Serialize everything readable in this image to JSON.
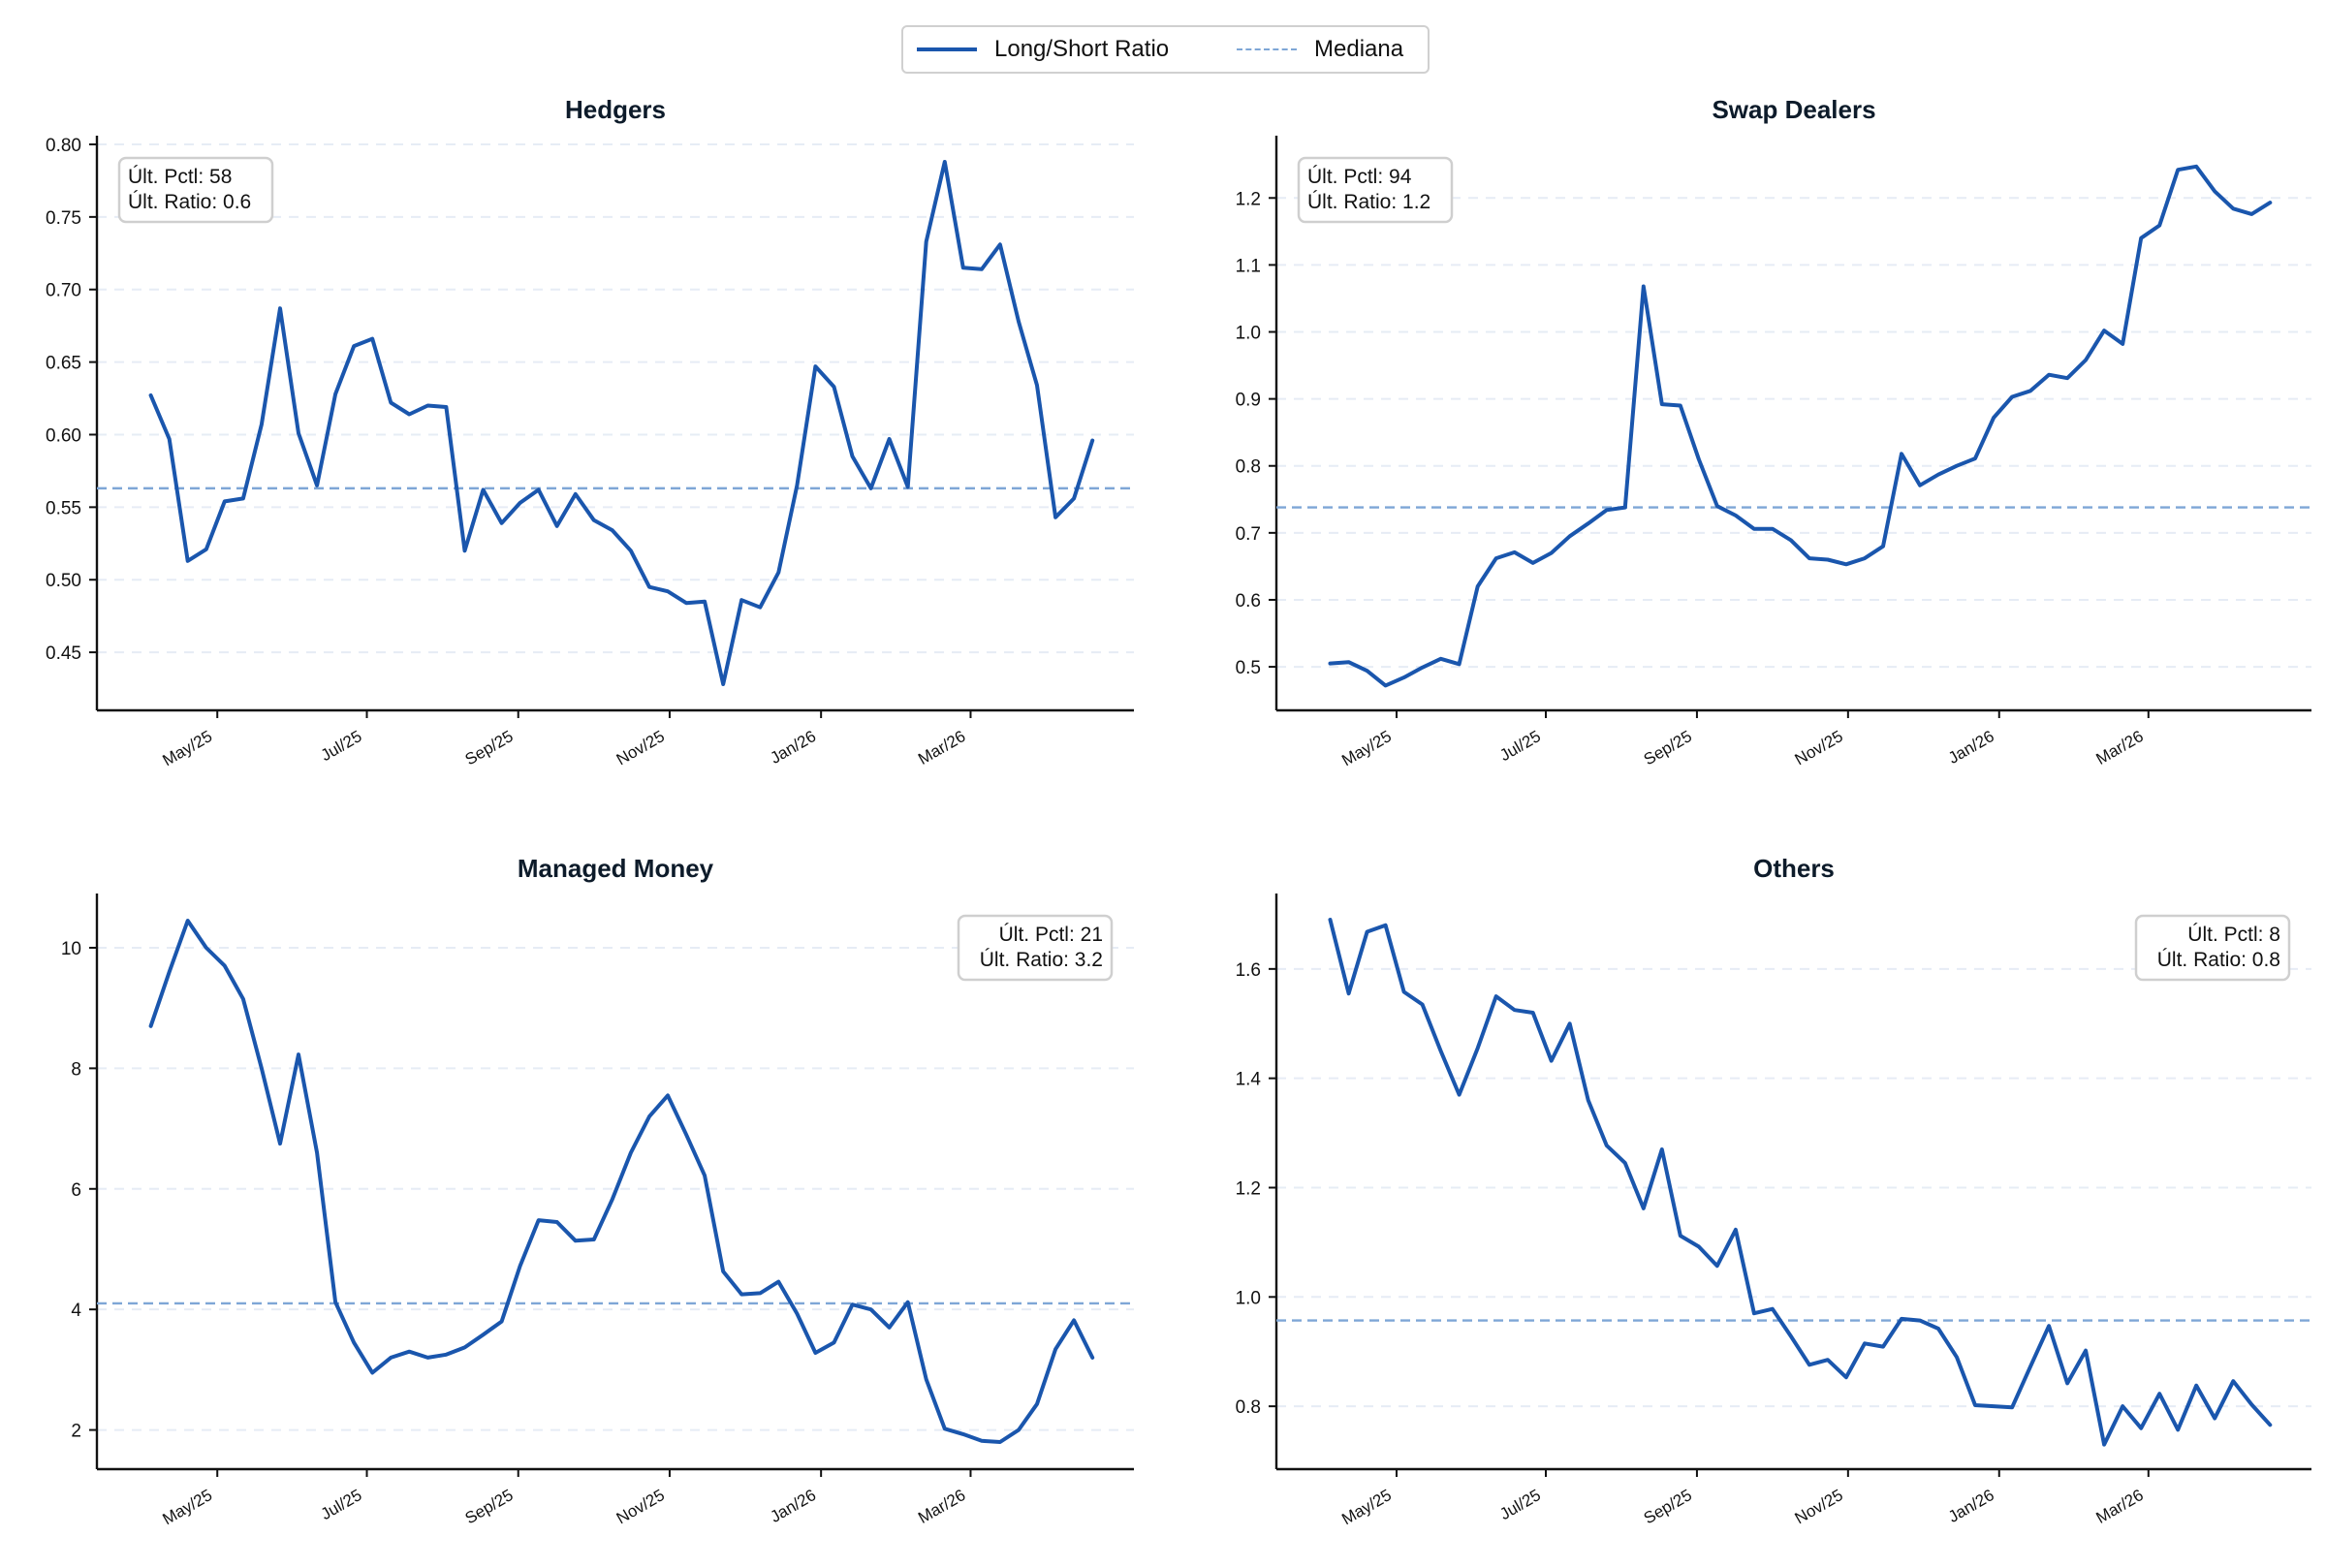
{
  "legend": {
    "ratio_label": "Long/Short Ratio",
    "median_label": "Mediana"
  },
  "colors": {
    "line": "#1a56ad",
    "median": "#7ea6d6",
    "grid": "#e6ecf5",
    "axis": "#111111",
    "title": "#0d1b2a"
  },
  "chart_data": [
    {
      "type": "line",
      "title": "Hedgers",
      "annotation": [
        "Últ. Pctl: 58",
        "Últ. Ratio: 0.6"
      ],
      "annotation_position": "top-left",
      "x_ticks": [
        "May/25",
        "Jul/25",
        "Sep/25",
        "Nov/25",
        "Jan/26",
        "Mar/26"
      ],
      "y_ticks": [
        "0.45",
        "0.50",
        "0.55",
        "0.60",
        "0.65",
        "0.70",
        "0.75",
        "0.80"
      ],
      "ylim": [
        0.41,
        0.806
      ],
      "grid": "horizontal-dashed",
      "median": 0.563,
      "values": [
        0.627,
        0.597,
        0.513,
        0.521,
        0.554,
        0.556,
        0.607,
        0.687,
        0.601,
        0.565,
        0.628,
        0.661,
        0.666,
        0.622,
        0.614,
        0.62,
        0.619,
        0.52,
        0.562,
        0.539,
        0.553,
        0.562,
        0.537,
        0.559,
        0.541,
        0.534,
        0.52,
        0.495,
        0.492,
        0.484,
        0.485,
        0.428,
        0.486,
        0.481,
        0.505,
        0.565,
        0.647,
        0.633,
        0.585,
        0.563,
        0.597,
        0.564,
        0.733,
        0.788,
        0.715,
        0.714,
        0.731,
        0.678,
        0.634,
        0.543,
        0.556,
        0.596
      ]
    },
    {
      "type": "line",
      "title": "Swap Dealers",
      "annotation": [
        "Últ. Pctl: 94",
        "Últ. Ratio: 1.2"
      ],
      "annotation_position": "top-left",
      "x_ticks": [
        "May/25",
        "Jul/25",
        "Sep/25",
        "Nov/25",
        "Jan/26",
        "Mar/26"
      ],
      "y_ticks": [
        "0.5",
        "0.6",
        "0.7",
        "0.8",
        "0.9",
        "1.0",
        "1.1",
        "1.2"
      ],
      "ylim": [
        0.435,
        1.293
      ],
      "grid": "horizontal-dashed",
      "median": 0.738,
      "values": [
        0.505,
        0.507,
        0.494,
        0.472,
        0.484,
        0.499,
        0.512,
        0.504,
        0.62,
        0.662,
        0.671,
        0.655,
        0.67,
        0.695,
        0.714,
        0.734,
        0.738,
        1.068,
        0.892,
        0.89,
        0.81,
        0.74,
        0.726,
        0.706,
        0.706,
        0.689,
        0.662,
        0.66,
        0.653,
        0.662,
        0.68,
        0.818,
        0.771,
        0.787,
        0.8,
        0.811,
        0.872,
        0.903,
        0.912,
        0.936,
        0.931,
        0.958,
        1.002,
        0.982,
        1.14,
        1.159,
        1.242,
        1.247,
        1.21,
        1.184,
        1.176,
        1.193
      ]
    },
    {
      "type": "line",
      "title": "Managed Money",
      "annotation": [
        "Últ. Pctl: 21",
        "Últ. Ratio: 3.2"
      ],
      "annotation_position": "top-right",
      "x_ticks": [
        "May/25",
        "Jul/25",
        "Sep/25",
        "Nov/25",
        "Jan/26",
        "Mar/26"
      ],
      "y_ticks": [
        "2",
        "4",
        "6",
        "8",
        "10"
      ],
      "ylim": [
        1.35,
        10.9
      ],
      "grid": "horizontal-dashed",
      "median": 4.1,
      "values": [
        8.7,
        9.6,
        10.45,
        10.0,
        9.7,
        9.15,
        8.0,
        6.75,
        8.23,
        6.6,
        4.12,
        3.45,
        2.95,
        3.2,
        3.3,
        3.2,
        3.25,
        3.37,
        3.58,
        3.8,
        4.72,
        5.48,
        5.45,
        5.14,
        5.16,
        5.83,
        6.6,
        7.2,
        7.55,
        6.9,
        6.22,
        4.63,
        4.25,
        4.27,
        4.46,
        3.93,
        3.28,
        3.45,
        4.08,
        4.0,
        3.7,
        4.12,
        2.84,
        2.02,
        1.93,
        1.82,
        1.8,
        2.0,
        2.43,
        3.34,
        3.82,
        3.2
      ]
    },
    {
      "type": "line",
      "title": "Others",
      "annotation": [
        "Últ. Pctl: 8",
        "Últ. Ratio: 0.8"
      ],
      "annotation_position": "top-right",
      "x_ticks": [
        "May/25",
        "Jul/25",
        "Sep/25",
        "Nov/25",
        "Jan/26",
        "Mar/26"
      ],
      "y_ticks": [
        "0.8",
        "1.0",
        "1.2",
        "1.4",
        "1.6"
      ],
      "ylim": [
        0.685,
        1.738
      ],
      "grid": "horizontal-dashed",
      "median": 0.957,
      "values": [
        1.69,
        1.555,
        1.668,
        1.68,
        1.558,
        1.535,
        1.45,
        1.37,
        1.455,
        1.55,
        1.525,
        1.52,
        1.432,
        1.5,
        1.36,
        1.277,
        1.245,
        1.162,
        1.27,
        1.112,
        1.092,
        1.057,
        1.123,
        0.97,
        0.978,
        0.928,
        0.876,
        0.885,
        0.853,
        0.915,
        0.909,
        0.96,
        0.957,
        0.942,
        0.89,
        0.802,
        0.8,
        0.798,
        0.873,
        0.947,
        0.842,
        0.902,
        0.73,
        0.8,
        0.76,
        0.823,
        0.757,
        0.838,
        0.778,
        0.846,
        0.803,
        0.766
      ]
    }
  ]
}
